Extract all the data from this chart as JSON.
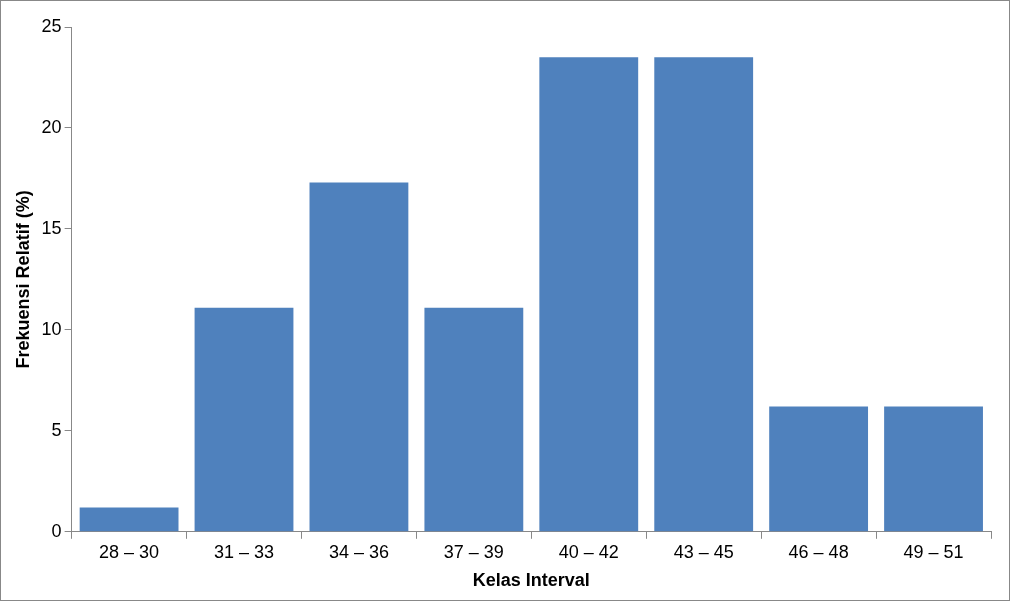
{
  "chart_data": {
    "type": "bar",
    "xlabel": "Kelas Interval",
    "ylabel": "Frekuensi Relatif (%)",
    "categories": [
      "28 – 30",
      "31 – 33",
      "34 – 36",
      "37 – 39",
      "40 – 42",
      "43 – 45",
      "46 – 48",
      "49 – 51"
    ],
    "values": [
      1.2,
      11.1,
      17.3,
      11.1,
      23.5,
      23.5,
      6.2,
      6.2
    ],
    "color": "#4f81bd",
    "ylim": [
      0,
      25
    ],
    "yticks": [
      0,
      5,
      10,
      15,
      20,
      25
    ],
    "grid": false,
    "legend": false
  }
}
